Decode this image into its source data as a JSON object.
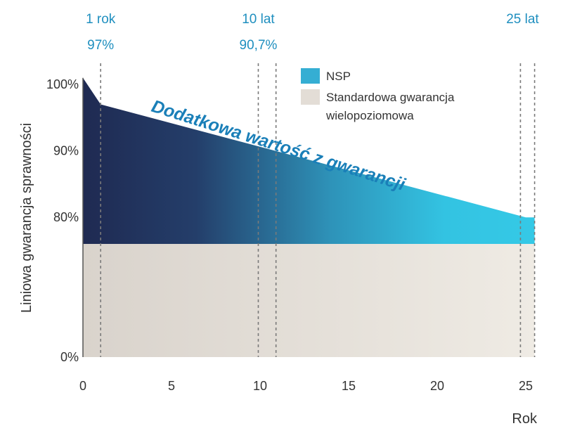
{
  "chart_data": {
    "type": "area",
    "xlabel": "Rok",
    "ylabel": "Liniowa gwarancja sprawności",
    "xlim": [
      0,
      25.5
    ],
    "x_ticks": [
      0,
      5,
      10,
      15,
      20,
      25
    ],
    "x_tick_labels": [
      "0",
      "5",
      "10",
      "15",
      "20",
      "25"
    ],
    "y_tick_labels": [
      {
        "value": 100,
        "label": "100%"
      },
      {
        "value": 90,
        "label": "90%"
      },
      {
        "value": 80,
        "label": "80%"
      },
      {
        "value": 0,
        "label": "0%"
      }
    ],
    "y_axis_note": "broken axis: 0% to ~76% compressed",
    "series": [
      {
        "name": "NSP",
        "color_start": "#1f2a52",
        "color_end": "#35c9e6",
        "points": [
          [
            0,
            101
          ],
          [
            1,
            97
          ],
          [
            25,
            80
          ]
        ]
      },
      {
        "name": "Standardowa gwarancja wielopoziomowa",
        "color": "#e3ddd6",
        "points": [
          [
            0,
            76
          ],
          [
            25,
            76
          ]
        ]
      }
    ],
    "reference_lines": [
      {
        "x": 1,
        "label_top": "1 rok",
        "label_bottom": "97%"
      },
      {
        "x": 9.9,
        "label_top": "10 lat",
        "label_bottom": "90,7%"
      },
      {
        "x": 10.9
      },
      {
        "x": 24.7,
        "label_top": "25 lat"
      },
      {
        "x": 25.5
      }
    ],
    "annotation": "Dodatkowa wartość z gwarancji",
    "legend": [
      {
        "label": "NSP",
        "color": "#35aed3"
      },
      {
        "label": "Standardowa gwarancja",
        "label2": "wielopoziomowa",
        "color": "#e3ddd6"
      }
    ],
    "legend_position": "top-center"
  }
}
